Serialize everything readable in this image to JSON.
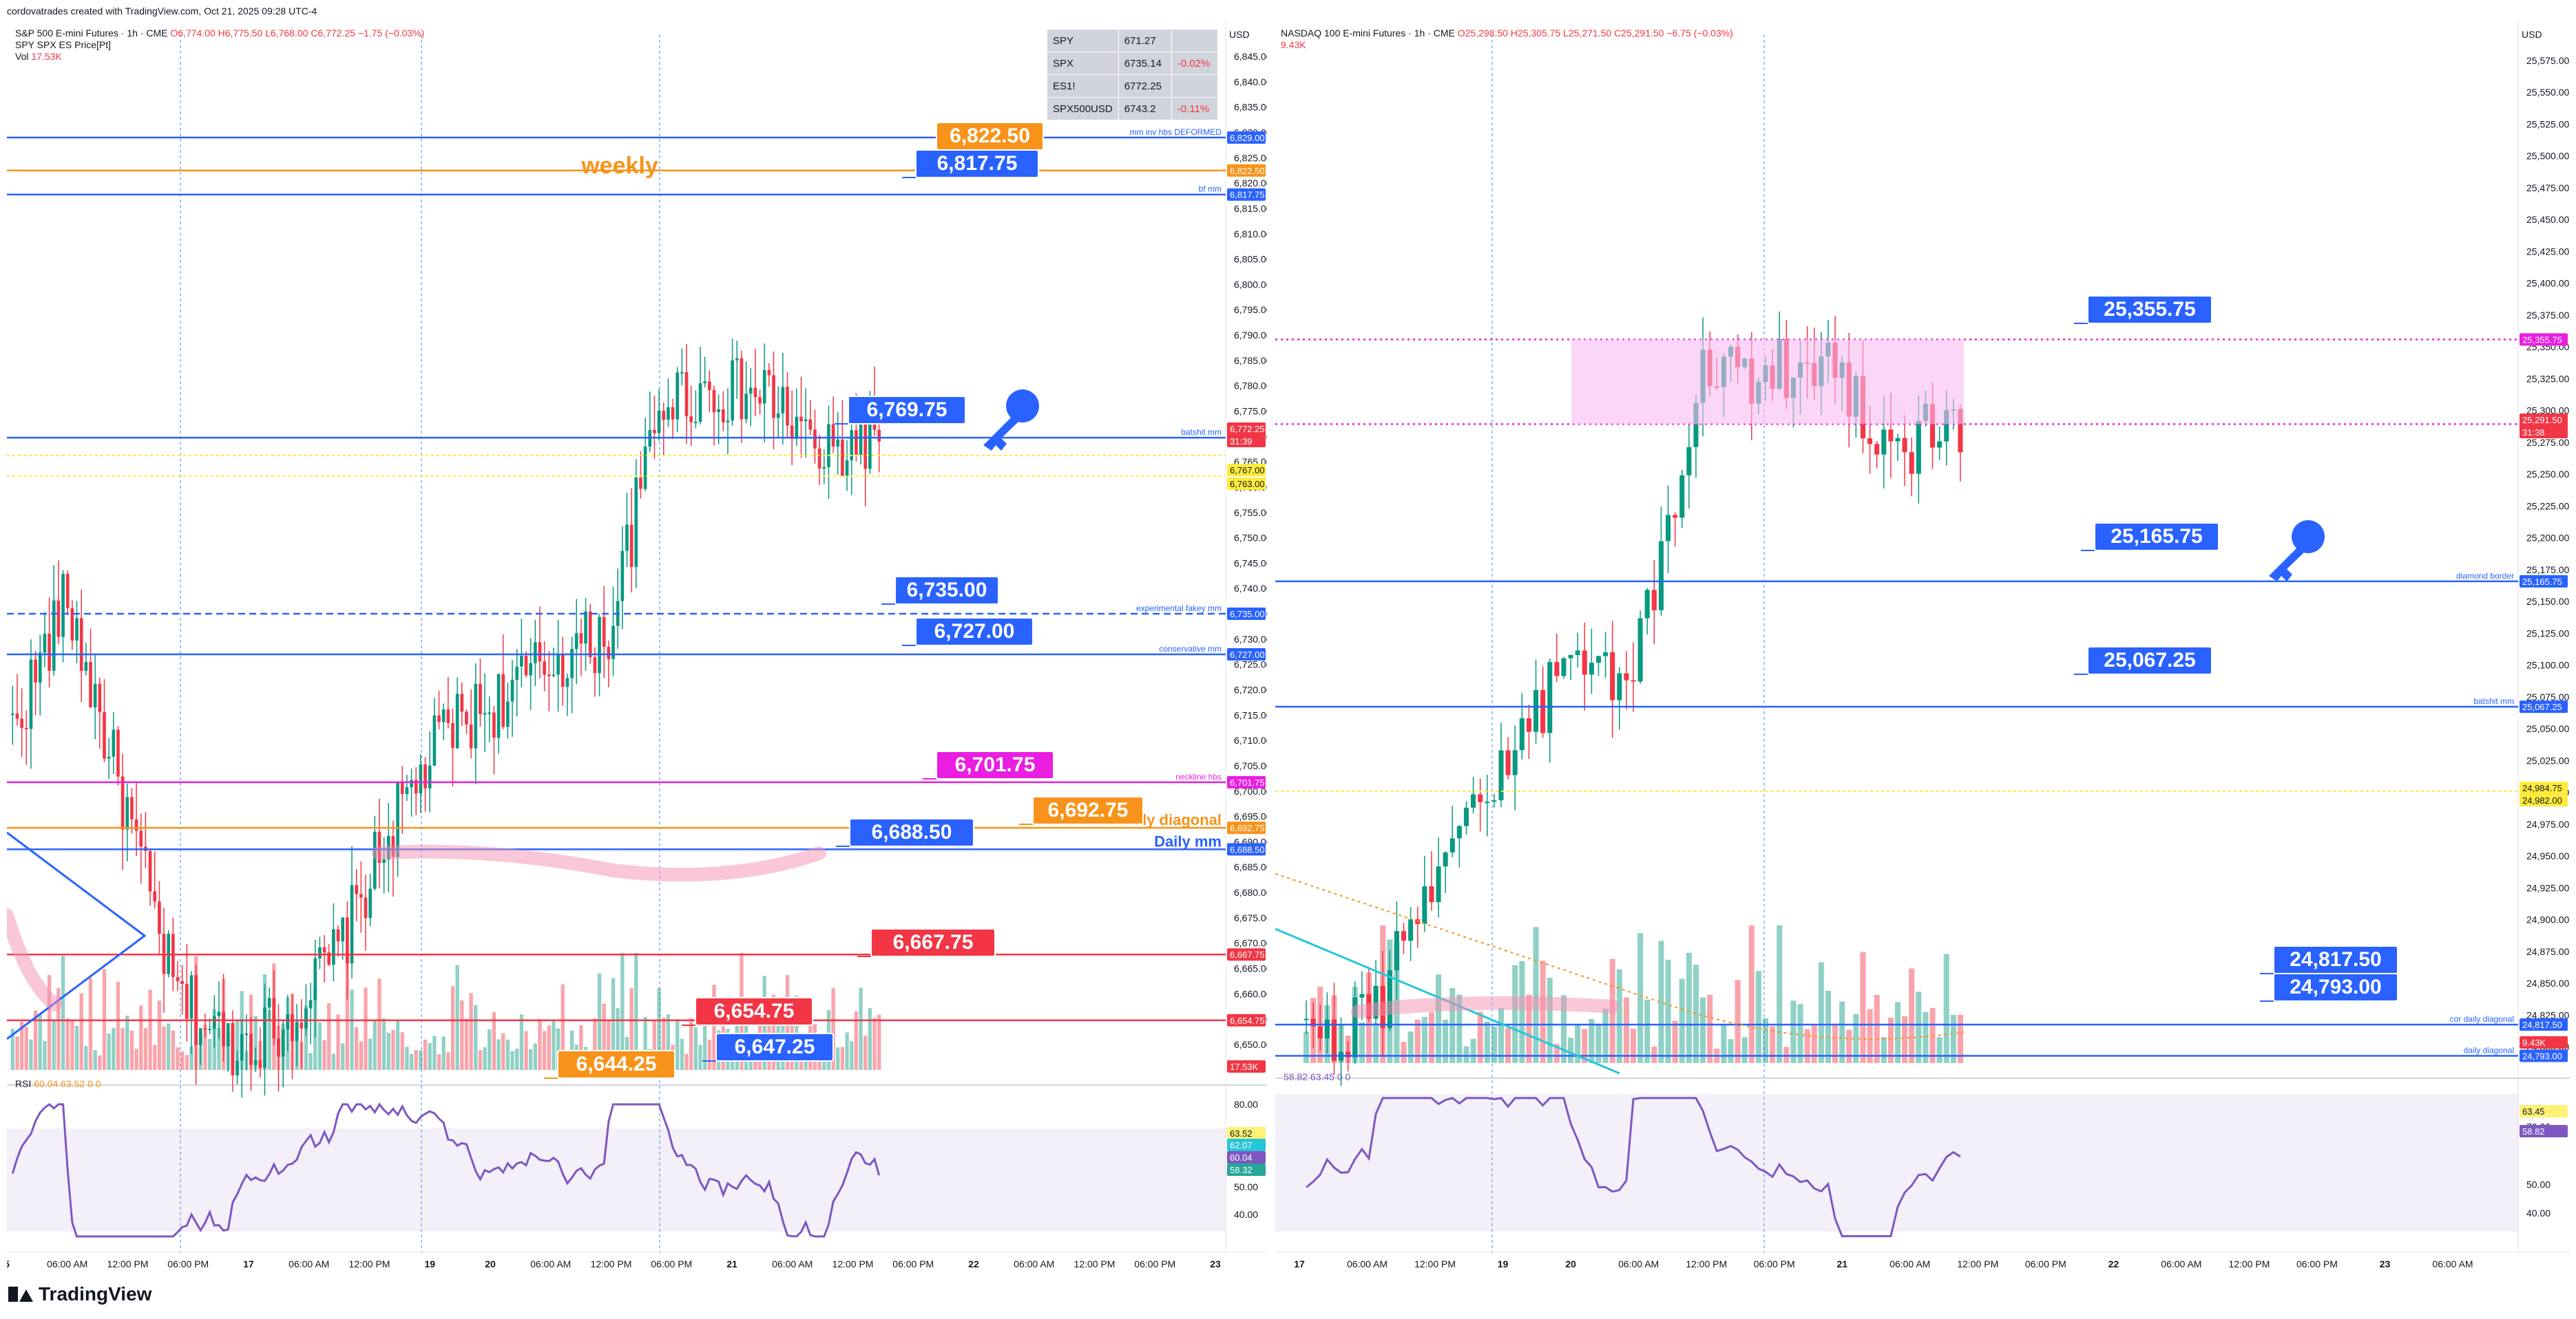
{
  "header": {
    "credit": "cordovatrades created with TradingView.com, Oct 21, 2025 09:28 UTC-4"
  },
  "brand": "TradingView",
  "left_panel": {
    "title_line": "S&P 500 E-mini Futures · 1h · CME",
    "ohlc": "O6,774.00 H6,775.50 L6,768.00 C6,772.25 −1.75 (−0.03%)",
    "secondary": "SPY SPX ES Price[Pt]",
    "vol_label": "Vol",
    "vol_value": "17.53K",
    "currency": "USD",
    "rsi_label": "RSI",
    "rsi_values": "60.04 63.52 0 0",
    "quotes": [
      {
        "sym": "SPY",
        "price": "671.27",
        "chg": ""
      },
      {
        "sym": "SPX",
        "price": "6735.14",
        "chg": "-0.02%"
      },
      {
        "sym": "ES1!",
        "price": "6772.25",
        "chg": ""
      },
      {
        "sym": "SPX500USD",
        "price": "6743.2",
        "chg": "-0.11%"
      }
    ],
    "price_ticks": [
      "6,845.00",
      "6,840.00",
      "6,835.00",
      "6,830.00",
      "6,825.00",
      "6,820.00",
      "6,815.00",
      "6,810.00",
      "6,805.00",
      "6,800.00",
      "6,795.00",
      "6,790.00",
      "6,785.00",
      "6,780.00",
      "6,775.00",
      "6,770.00",
      "6,765.00",
      "6,760.00",
      "6,755.00",
      "6,750.00",
      "6,745.00",
      "6,740.00",
      "6,735.00",
      "6,730.00",
      "6,725.00",
      "6,720.00",
      "6,715.00",
      "6,710.00",
      "6,705.00",
      "6,700.00",
      "6,695.00",
      "6,690.00",
      "6,685.00",
      "6,680.00",
      "6,675.00",
      "6,670.00",
      "6,665.00",
      "6,660.00",
      "6,655.00",
      "6,650.00"
    ],
    "rsi_ticks": [
      "80.00",
      "70.00",
      "60.00",
      "50.00",
      "40.00"
    ],
    "time_ticks": [
      "5",
      "06:00 AM",
      "12:00 PM",
      "06:00 PM",
      "17",
      "06:00 AM",
      "12:00 PM",
      "19",
      "20",
      "06:00 AM",
      "12:00 PM",
      "06:00 PM",
      "21",
      "06:00 AM",
      "12:00 PM",
      "06:00 PM",
      "22",
      "06:00 AM",
      "12:00 PM",
      "06:00 PM",
      "23"
    ],
    "levels": [
      {
        "label": "mm inv hbs DEFORMED",
        "value": "6,829.00",
        "color": "#2962ff"
      },
      {
        "label": "",
        "value": "6,822.50",
        "color": "#f7931a"
      },
      {
        "label": "bf mm",
        "value": "6,817.75",
        "color": "#2962ff"
      },
      {
        "label": "batshit mm",
        "value": "6,769.75",
        "color": "#2962ff"
      },
      {
        "label": "experimental fakey mm",
        "value": "6,735.00",
        "color": "#2962ff"
      },
      {
        "label": "conservative mm",
        "value": "6,727.00",
        "color": "#2962ff"
      },
      {
        "label": "neckline hbs",
        "value": "6,701.75",
        "color": "#e91ee0"
      },
      {
        "label": "daily diagonal",
        "value": "6,692.75",
        "color": "#f7931a"
      },
      {
        "label": "Daily mm",
        "value": "6,688.50",
        "color": "#2962ff"
      },
      {
        "label": "",
        "value": "6,667.75",
        "color": "#f23645"
      },
      {
        "label": "",
        "value": "6,654.75",
        "color": "#f23645"
      }
    ],
    "callouts": [
      "6,822.50",
      "6,817.75",
      "6,769.75",
      "6,735.00",
      "6,727.00",
      "6,701.75",
      "6,692.75",
      "6,688.50",
      "6,667.75",
      "6,654.75",
      "6,647.25",
      "6,644.25"
    ],
    "weekly_label": "weekly",
    "right_badges": [
      "6,772.25",
      "31:39",
      "6,769.75",
      "6,767.00",
      "6,763.00",
      "6,667.75",
      "6,654.75",
      "17.53K"
    ],
    "rsi_badges": [
      "63.52",
      "62.07",
      "60.04",
      "58.32"
    ]
  },
  "right_panel": {
    "title_line": "NASDAQ 100 E-mini Futures · 1h · CME",
    "ohlc": "O25,298.50 H25,305.75 L25,271.50 C25,291.50 −6.75 (−0.03%)",
    "vol_value": "9.43K",
    "currency": "USD",
    "rsi_values": "58.82 63.45 0 0",
    "price_ticks": [
      "25,575.00",
      "25,550.00",
      "25,525.00",
      "25,500.00",
      "25,475.00",
      "25,450.00",
      "25,425.00",
      "25,400.00",
      "25,375.00",
      "25,350.00",
      "25,325.00",
      "25,300.00",
      "25,275.00",
      "25,250.00",
      "25,225.00",
      "25,200.00",
      "25,175.00",
      "25,150.00",
      "25,125.00",
      "25,100.00",
      "25,075.00",
      "25,050.00",
      "25,025.00",
      "25,000.00",
      "24,975.00",
      "24,950.00",
      "24,925.00",
      "24,900.00",
      "24,875.00",
      "24,850.00",
      "24,825.00",
      "24,800.00"
    ],
    "rsi_ticks": [
      "70.00",
      "50.00",
      "40.00"
    ],
    "time_ticks": [
      "17",
      "06:00 AM",
      "12:00 PM",
      "19",
      "20",
      "06:00 AM",
      "12:00 PM",
      "06:00 PM",
      "21",
      "06:00 AM",
      "12:00 PM",
      "06:00 PM",
      "22",
      "06:00 AM",
      "12:00 PM",
      "06:00 PM",
      "23",
      "06:00 AM"
    ],
    "levels": [
      {
        "label": "",
        "value": "25,355.75",
        "color": "#e91ee0"
      },
      {
        "label": "",
        "value": "25,289.25",
        "color": "#e91ee0"
      },
      {
        "label": "diamond border",
        "value": "25,165.75",
        "color": "#2962ff"
      },
      {
        "label": "batshit mm",
        "value": "25,067.25",
        "color": "#2962ff"
      },
      {
        "label": "cor daily diagonal",
        "value": "24,817.50",
        "color": "#2962ff"
      },
      {
        "label": "daily diagonal",
        "value": "24,793.00",
        "color": "#2962ff"
      }
    ],
    "callouts": [
      "25,355.75",
      "25,165.75",
      "25,067.25",
      "24,817.50",
      "24,793.00"
    ],
    "right_badges": [
      "25,355.75",
      "25,291.50",
      "31:38",
      "25,289.25",
      "25,165.75",
      "25,067.25",
      "24,984.75",
      "24,982.00",
      "24,817.50",
      "24,817.50",
      "24,793.00",
      "9.43K"
    ],
    "rsi_badges": [
      "63.45",
      "58.82"
    ]
  },
  "chart_data": [
    {
      "type": "line",
      "title": "S&P 500 E-mini Futures · 1h · CME",
      "ylim": [
        6647,
        6848
      ],
      "x": [
        "15 06:00 AM",
        "15 12:00 PM",
        "15 06:00 PM",
        "16 06:00 AM",
        "16 12:00 PM",
        "17",
        "17 06:00 AM",
        "17 12:00 PM",
        "17 06:00 PM",
        "19",
        "20",
        "20 06:00 AM",
        "20 12:00 PM",
        "20 06:00 PM",
        "21",
        "21 06:00 AM",
        "21 09:00 AM"
      ],
      "series": [
        {
          "values": [
            6712,
            6738,
            6700,
            6660,
            6650,
            6654,
            6668,
            6693,
            6712,
            6718,
            6726,
            6731,
            6778,
            6779,
            6778,
            6765,
            6772
          ]
        }
      ]
    },
    {
      "type": "line",
      "title": "NASDAQ 100 E-mini Futures · 1h · CME",
      "ylim": [
        24790,
        25590
      ],
      "x": [
        "17",
        "17 06:00 AM",
        "17 12:00 PM",
        "19",
        "20",
        "20 06:00 AM",
        "20 12:00 PM",
        "20 06:00 PM",
        "21",
        "21 06:00 AM",
        "21 09:00 AM"
      ],
      "series": [
        {
          "values": [
            24800,
            24820,
            24950,
            25020,
            25100,
            25090,
            25320,
            25330,
            25340,
            25270,
            25291
          ]
        }
      ]
    }
  ]
}
